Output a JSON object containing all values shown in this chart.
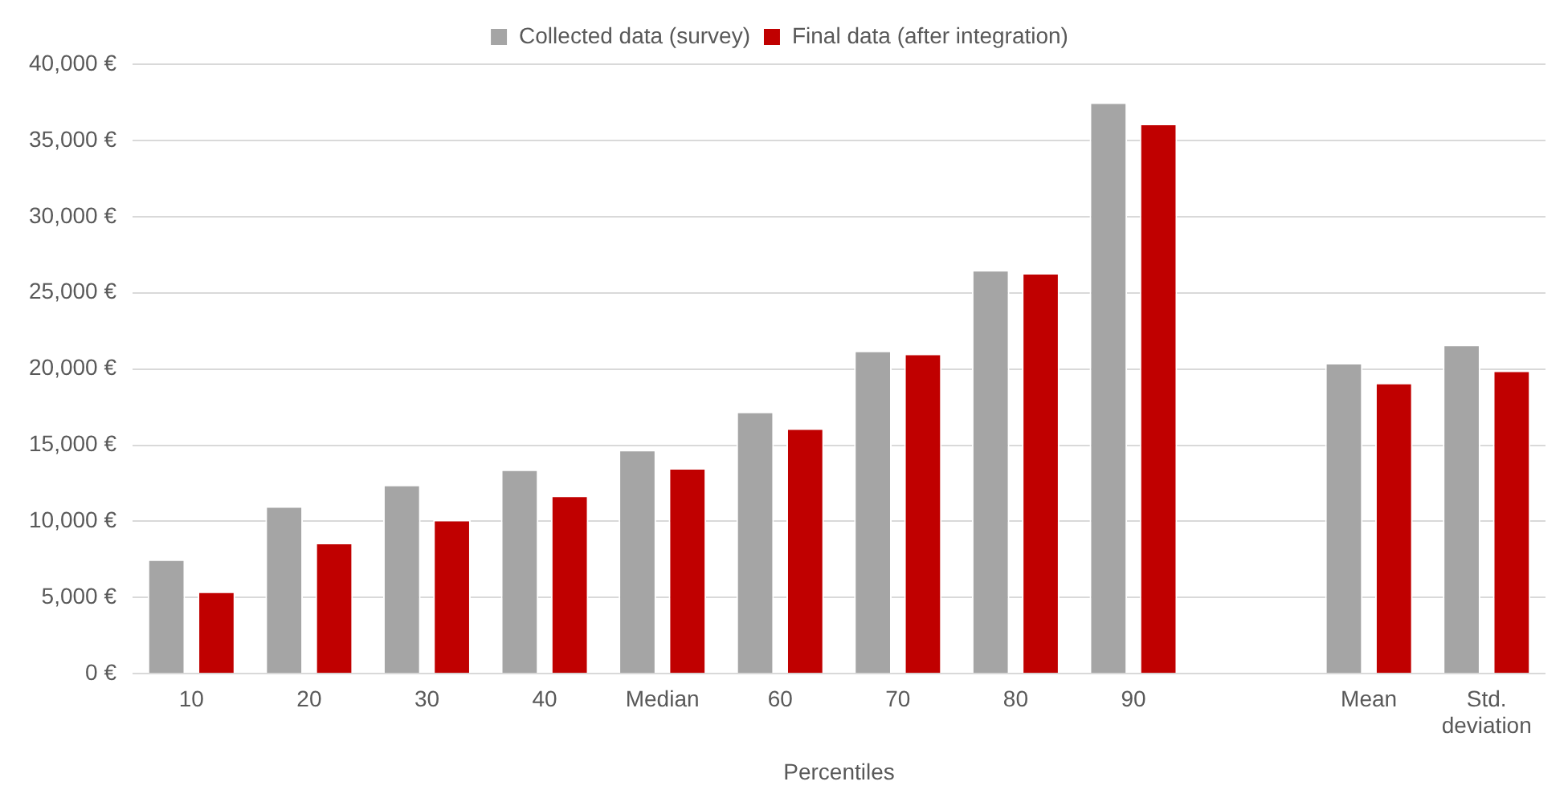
{
  "chart_data": {
    "type": "bar",
    "xlabel": "Percentiles",
    "categories": [
      "10",
      "20",
      "30",
      "40",
      "Median",
      "60",
      "70",
      "80",
      "90",
      null,
      "Mean",
      "Std. deviation"
    ],
    "series": [
      {
        "name": "Collected data (survey)",
        "color": "#a5a5a5",
        "values": [
          7500,
          11000,
          12400,
          13400,
          14700,
          17200,
          21200,
          26500,
          37500,
          null,
          20400,
          21600
        ]
      },
      {
        "name": "Final data (after integration)",
        "color": "#c00000",
        "values": [
          5400,
          8600,
          10100,
          11700,
          13500,
          16100,
          21000,
          26300,
          36100,
          null,
          19100,
          19900
        ]
      }
    ],
    "ylim": [
      0,
      40000
    ],
    "yticks": [
      {
        "value": 0,
        "label": "0 €"
      },
      {
        "value": 5000,
        "label": "5,000 €"
      },
      {
        "value": 10000,
        "label": "10,000 €"
      },
      {
        "value": 15000,
        "label": "15,000 €"
      },
      {
        "value": 20000,
        "label": "20,000 €"
      },
      {
        "value": 25000,
        "label": "25,000 €"
      },
      {
        "value": 30000,
        "label": "30,000 €"
      },
      {
        "value": 35000,
        "label": "35,000 €"
      },
      {
        "value": 40000,
        "label": "40,000 €"
      }
    ],
    "grid": "y",
    "legend": "top"
  }
}
